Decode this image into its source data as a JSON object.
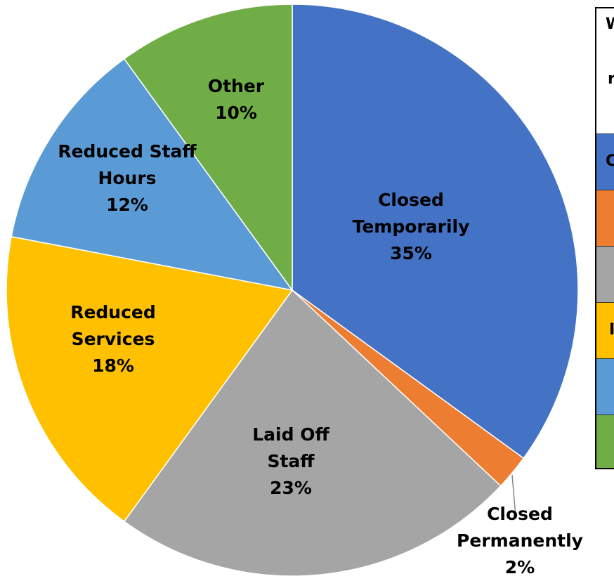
{
  "chart_data": {
    "type": "pie",
    "categories": [
      "Closed Temporarily",
      "Closed Permanently",
      "Laid Off Staff",
      "Reduced Services",
      "Reduced Staff Hours",
      "Other"
    ],
    "values": [
      35,
      2,
      23,
      18,
      12,
      10
    ],
    "value_labels": [
      "35%",
      "2%",
      "23%",
      "18%",
      "12%",
      "10%"
    ],
    "colors": [
      "#4472c4",
      "#ed7d31",
      "#a5a5a5",
      "#ffc000",
      "#5b9bd5",
      "#70ad47"
    ]
  },
  "table": {
    "header": [
      "W",
      "re"
    ],
    "rows": [
      "C",
      "",
      "",
      "I",
      "",
      ""
    ],
    "row_colors": [
      "#4472c4",
      "#ed7d31",
      "#a5a5a5",
      "#ffc000",
      "#5b9bd5",
      "#70ad47"
    ]
  }
}
